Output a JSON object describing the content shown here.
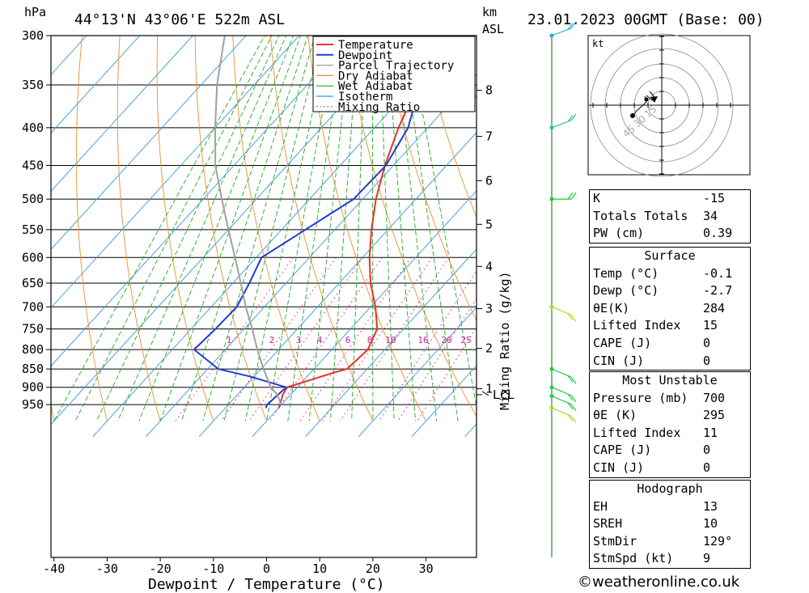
{
  "header": {
    "location": "44°13'N 43°06'E 522m ASL",
    "datetime": "23.01.2023 00GMT (Base: 00)",
    "pressure_unit": "hPa",
    "height_unit": "km",
    "height_unit2": "ASL"
  },
  "chart_data": {
    "type": "line",
    "title": "44°13'N 43°06'E 522m ASL",
    "xlabel": "Dewpoint / Temperature (°C)",
    "ylabel": "hPa",
    "y2label": "Mixing Ratio (g/kg)",
    "x_ticks": [
      "-40",
      "-30",
      "-20",
      "-10",
      "0",
      "10",
      "20",
      "30"
    ],
    "x_range": [
      -40,
      40
    ],
    "y_ticks": [
      "300",
      "350",
      "400",
      "450",
      "500",
      "550",
      "600",
      "650",
      "700",
      "750",
      "800",
      "850",
      "900",
      "950"
    ],
    "y_range": [
      300,
      960
    ],
    "km_ticks": [
      {
        "label": "8",
        "p": 356
      },
      {
        "label": "7",
        "p": 411
      },
      {
        "label": "6",
        "p": 472
      },
      {
        "label": "5",
        "p": 541
      },
      {
        "label": "4",
        "p": 617
      },
      {
        "label": "3",
        "p": 704
      },
      {
        "label": "2",
        "p": 797
      },
      {
        "label": "1",
        "p": 904
      },
      {
        "label": "LCL",
        "p": 921
      }
    ],
    "mixing_ratio_labels": [
      "1",
      "2",
      "3",
      "4",
      "6",
      "8",
      "10",
      "16",
      "20",
      "25"
    ],
    "legend": [
      "Temperature",
      "Dewpoint",
      "Parcel Trajectory",
      "Dry Adiabat",
      "Wet Adiabat",
      "Isotherm",
      "Mixing Ratio"
    ],
    "legend_position": "top-right",
    "series": [
      {
        "name": "Temperature",
        "color": "#e8302c",
        "points": [
          [
            0.1,
            960
          ],
          [
            -1.5,
            920
          ],
          [
            -1.9,
            900
          ],
          [
            4.3,
            860
          ],
          [
            6.2,
            850
          ],
          [
            6.8,
            800
          ],
          [
            5.0,
            750
          ],
          [
            0.9,
            700
          ],
          [
            -4.1,
            650
          ],
          [
            -8.7,
            600
          ],
          [
            -13.1,
            550
          ],
          [
            -17.5,
            500
          ],
          [
            -21.6,
            450
          ],
          [
            -25.5,
            400
          ],
          [
            -29.2,
            350
          ],
          [
            -33.4,
            300
          ]
        ]
      },
      {
        "name": "Dewpoint",
        "color": "#1e3cd2",
        "points": [
          [
            -2.4,
            960
          ],
          [
            -2.7,
            950
          ],
          [
            -2.1,
            900
          ],
          [
            -10.8,
            870
          ],
          [
            -18.0,
            850
          ],
          [
            -25.9,
            800
          ],
          [
            -25.4,
            750
          ],
          [
            -25.2,
            700
          ],
          [
            -26.9,
            650
          ],
          [
            -29.0,
            600
          ],
          [
            -25.5,
            550
          ],
          [
            -21.7,
            500
          ],
          [
            -21.4,
            450
          ],
          [
            -23.7,
            400
          ],
          [
            -28.8,
            350
          ],
          [
            -33.0,
            300
          ]
        ]
      },
      {
        "name": "Parcel Trajectory",
        "color": "#a0a0a0",
        "points": [
          [
            -0.1,
            950
          ],
          [
            -2.5,
            921
          ],
          [
            -5.0,
            900
          ],
          [
            -9.5,
            850
          ],
          [
            -14.0,
            800
          ],
          [
            -18.5,
            750
          ],
          [
            -23.5,
            700
          ],
          [
            -28.5,
            650
          ],
          [
            -34.0,
            600
          ],
          [
            -40.0,
            550
          ],
          [
            -46.5,
            500
          ],
          [
            -53.5,
            450
          ],
          [
            -60.0,
            400
          ],
          [
            -67.0,
            350
          ],
          [
            -74.0,
            300
          ]
        ]
      }
    ]
  },
  "hodograph": {
    "unit": "kt",
    "ring_labels": [
      "15",
      "30",
      "45"
    ]
  },
  "indices": {
    "rows": [
      {
        "label": "K",
        "value": "-15"
      },
      {
        "label": "Totals Totals",
        "value": "34"
      },
      {
        "label": "PW (cm)",
        "value": "0.39"
      }
    ]
  },
  "surface": {
    "title": "Surface",
    "rows": [
      {
        "label": "Temp (°C)",
        "value": "-0.1"
      },
      {
        "label": "Dewp (°C)",
        "value": "-2.7"
      },
      {
        "label": "θE(K)",
        "value": "284"
      },
      {
        "label": "Lifted Index",
        "value": "15"
      },
      {
        "label": "CAPE (J)",
        "value": "0"
      },
      {
        "label": "CIN (J)",
        "value": "0"
      }
    ]
  },
  "most_unstable": {
    "title": "Most Unstable",
    "rows": [
      {
        "label": "Pressure (mb)",
        "value": "700"
      },
      {
        "label": "θE (K)",
        "value": "295"
      },
      {
        "label": "Lifted Index",
        "value": "11"
      },
      {
        "label": "CAPE (J)",
        "value": "0"
      },
      {
        "label": "CIN (J)",
        "value": "0"
      }
    ]
  },
  "hodo_table": {
    "title": "Hodograph",
    "rows": [
      {
        "label": "EH",
        "value": "13"
      },
      {
        "label": "SREH",
        "value": "10"
      },
      {
        "label": "StmDir",
        "value": "129°"
      },
      {
        "label": "StmSpd (kt)",
        "value": "9"
      }
    ]
  },
  "footer": {
    "credit": "©weatheronline.co.uk"
  },
  "colors": {
    "temperature": "#e8302c",
    "dewpoint": "#1e3cd2",
    "parcel": "#a0a0a0",
    "dry_adiabat": "#e8902a",
    "wet_adiabat": "#22a822",
    "isotherm": "#3399dd",
    "mixing_ratio": "#d0208a"
  }
}
